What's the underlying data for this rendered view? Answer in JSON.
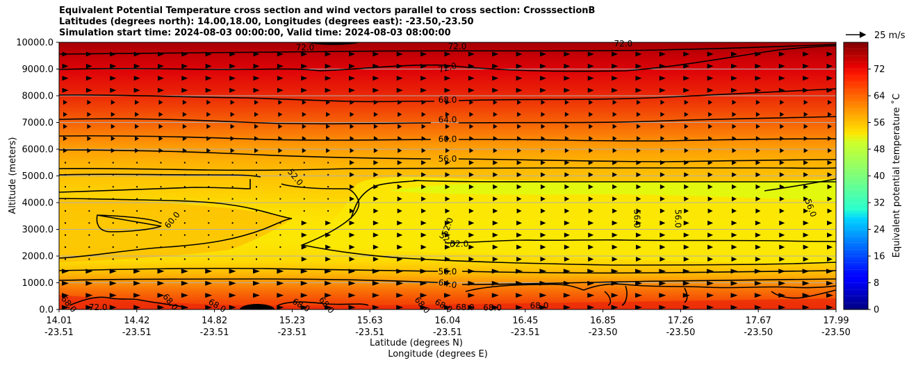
{
  "chart_data": {
    "type": "heatmap",
    "title_lines": [
      "Equivalent Potential Temperature cross section and wind vectors parallel to cross section: CrosssectionB",
      "Latitudes (degrees north): 14.00,18.00, Longitudes (degrees east): -23.50,-23.50",
      "Simulation start time: 2024-08-03 00:00:00, Valid time: 2024-08-03 08:00:00"
    ],
    "ylabel": "Altitude (meters)",
    "xlabel_lat": "Latitude (degrees N)",
    "xlabel_lon": "Longitude (degrees E)",
    "ylim": [
      0,
      10000
    ],
    "y_ticks": [
      "0.0",
      "1000.0",
      "2000.0",
      "3000.0",
      "4000.0",
      "5000.0",
      "6000.0",
      "7000.0",
      "8000.0",
      "9000.0",
      "10000.0"
    ],
    "y_tick_values": [
      0,
      1000,
      2000,
      3000,
      4000,
      5000,
      6000,
      7000,
      8000,
      9000,
      10000
    ],
    "x_ticks": [
      {
        "lat": "14.01",
        "lon": "-23.51"
      },
      {
        "lat": "14.42",
        "lon": "-23.51"
      },
      {
        "lat": "14.82",
        "lon": "-23.51"
      },
      {
        "lat": "15.23",
        "lon": "-23.51"
      },
      {
        "lat": "15.63",
        "lon": "-23.51"
      },
      {
        "lat": "16.04",
        "lon": "-23.51"
      },
      {
        "lat": "16.45",
        "lon": "-23.51"
      },
      {
        "lat": "16.85",
        "lon": "-23.50"
      },
      {
        "lat": "17.26",
        "lon": "-23.50"
      },
      {
        "lat": "17.67",
        "lon": "-23.50"
      },
      {
        "lat": "17.99",
        "lon": "-23.50"
      }
    ],
    "grid_horizontal": true,
    "colorbar": {
      "label": "Equivalent potential temperature $^\\circ$C",
      "label_text": "Equivalent potential temperature ˚C",
      "vmin": 0,
      "vmax": 80,
      "ticks": [
        "0",
        "8",
        "16",
        "24",
        "32",
        "40",
        "48",
        "56",
        "64",
        "72"
      ],
      "tick_values": [
        0,
        8,
        16,
        24,
        32,
        40,
        48,
        56,
        64,
        72
      ],
      "colormap": "jet"
    },
    "wind_reference": {
      "label": "25 m/s"
    },
    "contour_labels": [
      {
        "text": "72.0",
        "x": 15.27,
        "y": 9800,
        "rot": 0
      },
      {
        "text": "72.0",
        "x": 16.05,
        "y": 9850,
        "rot": 0
      },
      {
        "text": "72.0",
        "x": 16.9,
        "y": 9950,
        "rot": 0
      },
      {
        "text": "72.0",
        "x": 16.0,
        "y": 9050,
        "rot": -15
      },
      {
        "text": "68.0",
        "x": 16.0,
        "y": 7850,
        "rot": 0
      },
      {
        "text": "64.0",
        "x": 16.0,
        "y": 7100,
        "rot": 0
      },
      {
        "text": "60.0",
        "x": 16.0,
        "y": 6380,
        "rot": 0
      },
      {
        "text": "56.0",
        "x": 16.0,
        "y": 5630,
        "rot": 0
      },
      {
        "text": "52.0",
        "x": 15.22,
        "y": 4950,
        "rot": 50
      },
      {
        "text": "60.0",
        "x": 14.59,
        "y": 3350,
        "rot": -50
      },
      {
        "text": "52.0",
        "x": 16.0,
        "y": 3100,
        "rot": -70
      },
      {
        "text": "52.0",
        "x": 16.0,
        "y": 2600,
        "rot": 40
      },
      {
        "text": "52.0",
        "x": 16.06,
        "y": 2450,
        "rot": 0
      },
      {
        "text": "56.0",
        "x": 16.97,
        "y": 3400,
        "rot": 90
      },
      {
        "text": "56.0",
        "x": 17.18,
        "y": 3400,
        "rot": 90
      },
      {
        "text": "56.0",
        "x": 17.86,
        "y": 3800,
        "rot": 70
      },
      {
        "text": "56.0",
        "x": 16.0,
        "y": 1420,
        "rot": 0
      },
      {
        "text": "64.0",
        "x": 16.0,
        "y": 960,
        "rot": 10
      },
      {
        "text": "68.0",
        "x": 14.06,
        "y": 200,
        "rot": 50
      },
      {
        "text": "72.0",
        "x": 14.21,
        "y": 80,
        "rot": 0
      },
      {
        "text": "68.0",
        "x": 14.58,
        "y": 280,
        "rot": 50
      },
      {
        "text": "68.0",
        "x": 14.82,
        "y": 140,
        "rot": 30
      },
      {
        "text": "68.0",
        "x": 15.25,
        "y": 160,
        "rot": 30
      },
      {
        "text": "68.0",
        "x": 15.38,
        "y": 160,
        "rot": 50
      },
      {
        "text": "68.0",
        "x": 15.87,
        "y": 160,
        "rot": 50
      },
      {
        "text": "68.0",
        "x": 15.98,
        "y": 140,
        "rot": 30
      },
      {
        "text": "68.0",
        "x": 16.09,
        "y": 80,
        "rot": 0
      },
      {
        "text": "68.0",
        "x": 16.23,
        "y": 60,
        "rot": 0
      },
      {
        "text": "68.0",
        "x": 16.47,
        "y": 140,
        "rot": 0
      }
    ]
  }
}
